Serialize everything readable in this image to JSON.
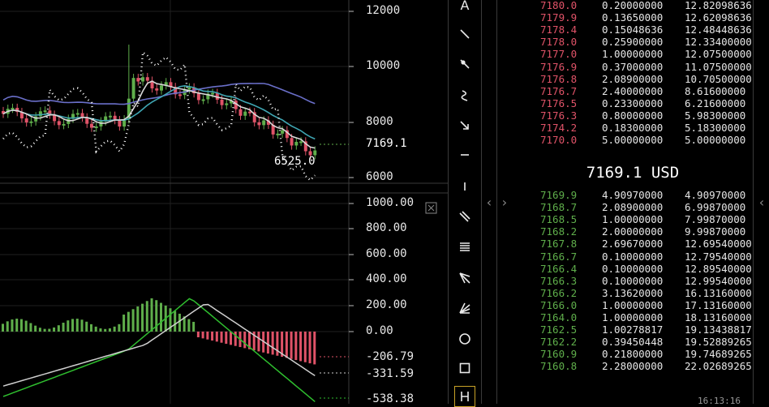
{
  "price_chart": {
    "y_ticks": [
      "12000",
      "10000",
      "8000",
      "6000"
    ],
    "last_price_label": "7169.1",
    "low_label": "6525.0"
  },
  "macd_chart": {
    "y_ticks": [
      "1000.00",
      "800.00",
      "600.00",
      "400.00",
      "200.00",
      "0.00"
    ],
    "value_labels": [
      "-206.79",
      "-331.59",
      "-538.38"
    ]
  },
  "toolbar": {
    "items": [
      {
        "name": "text-tool-icon",
        "glyph": "A"
      },
      {
        "name": "trend-line-icon",
        "glyph": ""
      },
      {
        "name": "ray-icon",
        "glyph": ""
      },
      {
        "name": "curve-icon",
        "glyph": ""
      },
      {
        "name": "arrow-icon",
        "glyph": ""
      },
      {
        "name": "horizontal-line-icon",
        "glyph": ""
      },
      {
        "name": "vertical-line-icon",
        "glyph": ""
      },
      {
        "name": "parallel-channel-icon",
        "glyph": ""
      },
      {
        "name": "fib-retracement-icon",
        "glyph": ""
      },
      {
        "name": "pitchfork-icon",
        "glyph": ""
      },
      {
        "name": "fan-icon",
        "glyph": ""
      },
      {
        "name": "circle-icon",
        "glyph": ""
      },
      {
        "name": "rectangle-icon",
        "glyph": ""
      },
      {
        "name": "pen-icon",
        "glyph": ""
      }
    ]
  },
  "orderbook": {
    "asks": [
      [
        "7180.0",
        "0.20000000",
        "12.82098636"
      ],
      [
        "7179.9",
        "0.13650000",
        "12.62098636"
      ],
      [
        "7178.4",
        "0.15048636",
        "12.48448636"
      ],
      [
        "7178.0",
        "0.25900000",
        "12.33400000"
      ],
      [
        "7177.0",
        "1.00000000",
        "12.07500000"
      ],
      [
        "7176.9",
        "0.37000000",
        "11.07500000"
      ],
      [
        "7176.8",
        "2.08900000",
        "10.70500000"
      ],
      [
        "7176.7",
        "2.40000000",
        "8.61600000"
      ],
      [
        "7176.5",
        "0.23300000",
        "6.21600000"
      ],
      [
        "7176.3",
        "0.80000000",
        "5.98300000"
      ],
      [
        "7174.2",
        "0.18300000",
        "5.18300000"
      ],
      [
        "7170.0",
        "5.00000000",
        "5.00000000"
      ]
    ],
    "mid_price": "7169.1 USD",
    "bids": [
      [
        "7169.9",
        "4.90970000",
        "4.90970000"
      ],
      [
        "7168.7",
        "2.08900000",
        "6.99870000"
      ],
      [
        "7168.5",
        "1.00000000",
        "7.99870000"
      ],
      [
        "7168.2",
        "2.00000000",
        "9.99870000"
      ],
      [
        "7167.8",
        "2.69670000",
        "12.69540000"
      ],
      [
        "7166.7",
        "0.10000000",
        "12.79540000"
      ],
      [
        "7166.4",
        "0.10000000",
        "12.89540000"
      ],
      [
        "7166.3",
        "0.10000000",
        "12.99540000"
      ],
      [
        "7166.2",
        "3.13620000",
        "16.13160000"
      ],
      [
        "7166.0",
        "1.00000000",
        "17.13160000"
      ],
      [
        "7164.0",
        "1.00000000",
        "18.13160000"
      ],
      [
        "7162.5",
        "1.00278817",
        "19.13438817"
      ],
      [
        "7162.2",
        "0.39450448",
        "19.52889265"
      ],
      [
        "7160.9",
        "0.21800000",
        "19.74689265"
      ],
      [
        "7160.8",
        "2.28000000",
        "22.02689265"
      ]
    ],
    "clock": "16:13:16"
  },
  "colors": {
    "up": "#5fae4b",
    "down": "#e05368",
    "ma_slow": "#6a6fc9",
    "ma_mid": "#3fa6b3",
    "ma_fast": "#d8d8d8",
    "macd_line": "#2fbf2f",
    "signal_line": "#cfcfcf"
  }
}
